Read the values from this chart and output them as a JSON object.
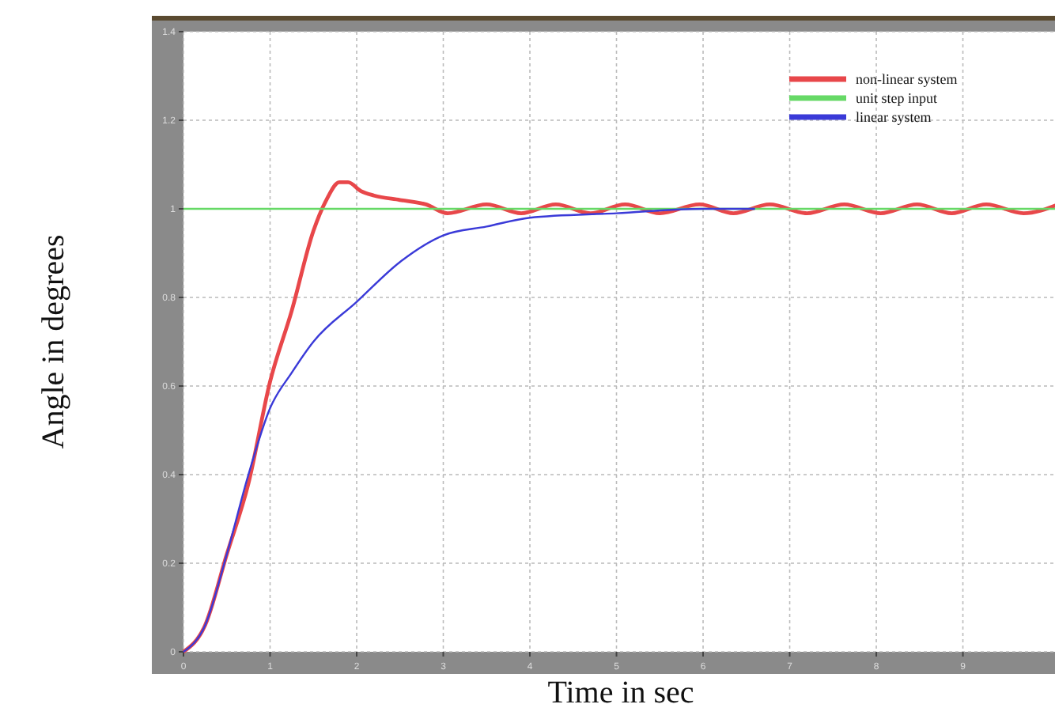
{
  "chart_data": {
    "type": "line",
    "xlabel": "Time in sec",
    "ylabel": "Angle in degrees",
    "xlim": [
      0,
      10.1
    ],
    "xticks": [
      0,
      1,
      2,
      3,
      4,
      5,
      6,
      7,
      8,
      9
    ],
    "ylim": [
      0,
      1.4
    ],
    "yticks": [
      0,
      0.2,
      0.4,
      0.6,
      0.8,
      1,
      1.2,
      1.4
    ],
    "grid": true,
    "legend": "top right",
    "line_style": "solid",
    "marker": "none",
    "series": [
      {
        "name": "non-linear system",
        "color": "#e8474a",
        "x": [
          0,
          0.25,
          0.5,
          0.75,
          1,
          1.25,
          1.5,
          1.65,
          1.8,
          1.9,
          2.05,
          2.2,
          2.5,
          2.8,
          3.05,
          3.5,
          3.9,
          4.3,
          4.7,
          5.1,
          5.5,
          5.96,
          6.35,
          6.77,
          7.2,
          7.63,
          8.05,
          8.47,
          8.87,
          9.27,
          9.7,
          10.1
        ],
        "values": [
          0,
          0.06,
          0.22,
          0.38,
          0.61,
          0.77,
          0.95,
          1.02,
          1.06,
          1.06,
          1.04,
          1.03,
          1.02,
          1.01,
          0.99,
          1.01,
          0.99,
          1.01,
          0.99,
          1.01,
          0.99,
          1.01,
          0.99,
          1.01,
          0.99,
          1.01,
          0.99,
          1.01,
          0.99,
          1.01,
          0.99,
          1.01
        ]
      },
      {
        "name": "unit step input",
        "color": "#66d966",
        "x": [
          0,
          10.1
        ],
        "values": [
          1,
          1
        ]
      },
      {
        "name": "linear system",
        "color": "#3a3ad8",
        "x": [
          0,
          0.25,
          0.5,
          0.75,
          1,
          1.25,
          1.5,
          2,
          2.5,
          3,
          3.5,
          4,
          5,
          6,
          6.6
        ],
        "values": [
          0,
          0.06,
          0.22,
          0.4,
          0.55,
          0.63,
          0.7,
          0.79,
          0.88,
          0.94,
          0.96,
          0.98,
          0.99,
          1,
          1
        ]
      }
    ]
  }
}
